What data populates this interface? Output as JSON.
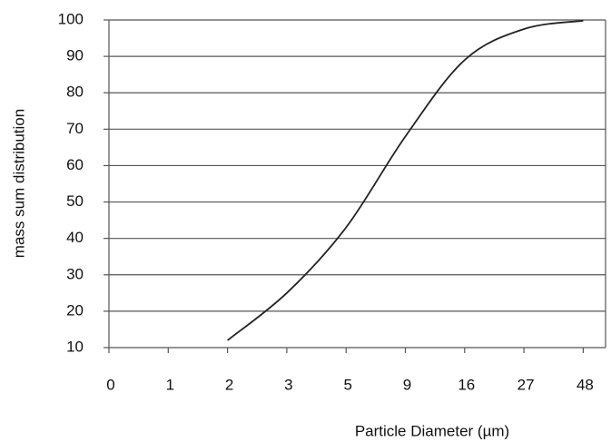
{
  "chart_data": {
    "type": "line",
    "x_label": "Particle Diameter (µm)",
    "y_label": "mass sum distribution",
    "categories": [
      "0",
      "1",
      "2",
      "3",
      "5",
      "9",
      "16",
      "27",
      "48"
    ],
    "series": [
      {
        "color": "#222222",
        "values": [
          null,
          null,
          12,
          25,
          43,
          68,
          89,
          97.5,
          99.8
        ]
      }
    ],
    "ylim": [
      10,
      100
    ],
    "yticks": [
      10,
      20,
      30,
      40,
      50,
      60,
      70,
      80,
      90,
      100
    ],
    "grid": true
  }
}
